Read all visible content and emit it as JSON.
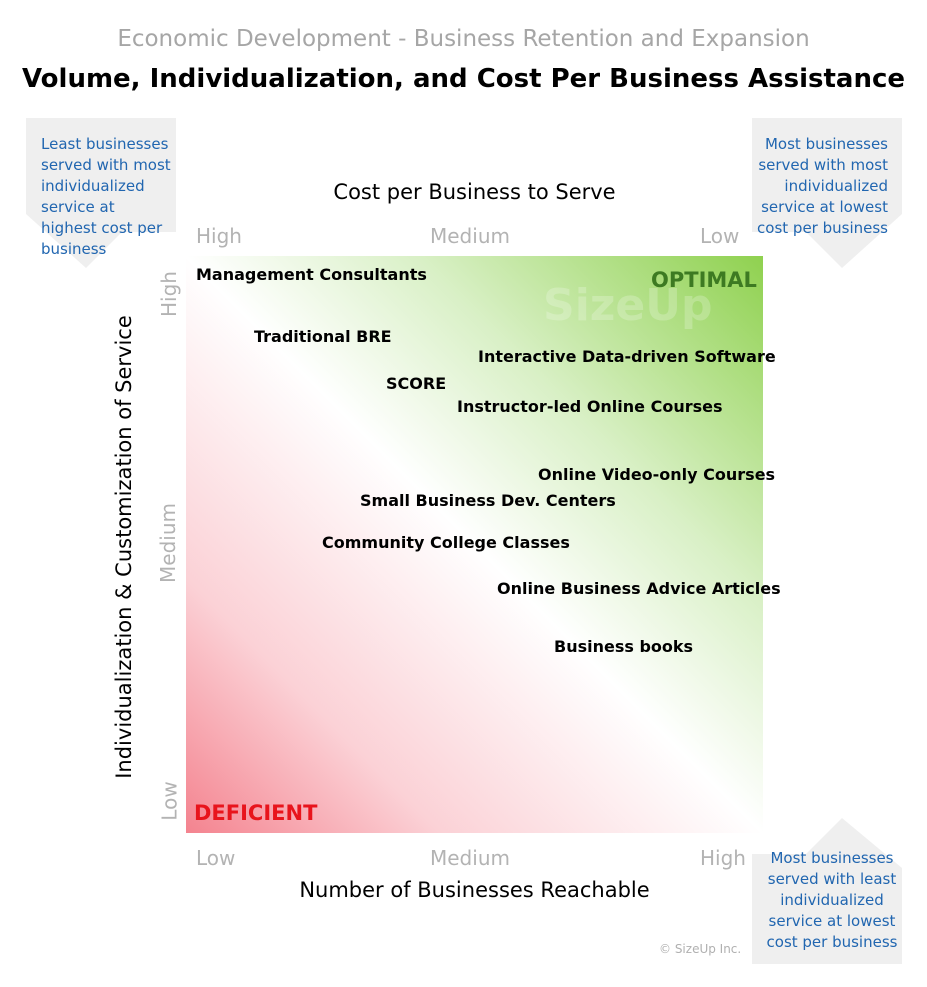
{
  "header": {
    "supertitle": "Economic Development - Business Retention and Expansion",
    "title": "Volume, Individualization, and Cost Per Business Assistance"
  },
  "corners": {
    "top_left": [
      "Least businesses",
      "served with most",
      "individualized",
      "service at",
      "highest cost per",
      "business"
    ],
    "top_right": [
      "Most businesses",
      "served with most",
      "individualized",
      "service at lowest",
      "cost per business"
    ],
    "bottom_right": [
      "Most businesses",
      "served with least",
      "individualized",
      "service at lowest",
      "cost per business"
    ]
  },
  "axes": {
    "top": {
      "label": "Cost per Business to Serve",
      "ticks": [
        "High",
        "Medium",
        "Low"
      ]
    },
    "bottom": {
      "label": "Number of Businesses Reachable",
      "ticks": [
        "Low",
        "Medium",
        "High"
      ]
    },
    "left": {
      "label": "Individualization & Customization of Service",
      "ticks": [
        "High",
        "Medium",
        "Low"
      ]
    }
  },
  "zones": {
    "optimal": "OPTIMAL",
    "deficient": "DEFICIENT"
  },
  "watermark": "SizeUp",
  "items": [
    "Management Consultants",
    "Traditional BRE",
    "Interactive Data-driven Software",
    "SCORE",
    "Instructor-led Online Courses",
    "Online Video-only Courses",
    "Small Business Dev. Centers",
    "Community College Classes",
    "Online Business Advice Articles",
    "Business books"
  ],
  "footer": {
    "copyright": "© SizeUp Inc."
  },
  "colors": {
    "deficient": "#e8141c",
    "optimal": "#3d7a22",
    "corner_text": "#2166b0",
    "gradient_low": "#f4838f",
    "gradient_high": "#8fd14f"
  }
}
